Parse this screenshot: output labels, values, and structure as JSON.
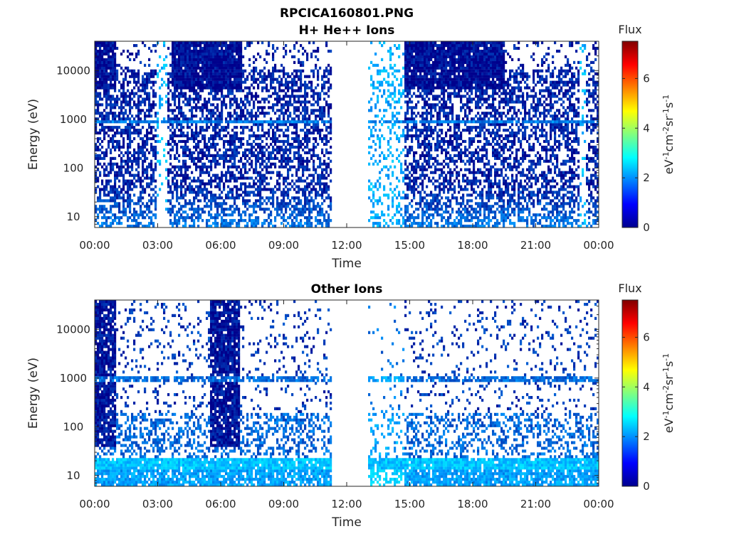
{
  "figure_title": "RPCICA160801.PNG",
  "colormap": [
    "#00008f",
    "#0000ff",
    "#0080ff",
    "#00ffff",
    "#80ff80",
    "#ffff00",
    "#ff8000",
    "#ff0000",
    "#800000"
  ],
  "chart_data": [
    {
      "type": "heatmap",
      "title": "H+ He++ Ions",
      "xlabel": "Time",
      "ylabel": "Energy (eV)",
      "yscale": "log",
      "xlim_hours": [
        0,
        24
      ],
      "ylim": [
        6,
        40000
      ],
      "x_ticks": [
        "00:00",
        "03:00",
        "06:00",
        "09:00",
        "12:00",
        "15:00",
        "18:00",
        "21:00",
        "00:00"
      ],
      "y_ticks": [
        {
          "value": 10,
          "label": "10"
        },
        {
          "value": 100,
          "label": "100"
        },
        {
          "value": 1000,
          "label": "1000"
        },
        {
          "value": 10000,
          "label": "10000"
        }
      ],
      "colorbar": {
        "title": "Flux",
        "label": "eV-1cm-2sr-1s-1",
        "range": [
          0,
          7.5
        ],
        "ticks": [
          "0",
          "2",
          "4",
          "6"
        ]
      },
      "data_gaps_hours": [
        [
          11.3,
          13.0
        ]
      ],
      "features": [
        {
          "description": "low-flux band",
          "start_hour": 3.0,
          "end_hour": 3.5
        },
        {
          "description": "low-flux band",
          "start_hour": 23.1,
          "end_hour": 23.4
        },
        {
          "description": "reduced flux",
          "start_hour": 13.0,
          "end_hour": 14.7
        },
        {
          "description": "high-energy enhancement",
          "start_hour": 0.0,
          "end_hour": 1.0
        },
        {
          "description": "high-energy enhancement",
          "start_hour": 3.7,
          "end_hour": 7.0
        },
        {
          "description": "high-energy enhancement",
          "start_hour": 14.7,
          "end_hour": 19.5
        },
        {
          "description": "energy band",
          "energy_ev": 900
        }
      ]
    },
    {
      "type": "heatmap",
      "title": "Other Ions",
      "xlabel": "Time",
      "ylabel": "Energy (eV)",
      "yscale": "log",
      "xlim_hours": [
        0,
        24
      ],
      "ylim": [
        6,
        40000
      ],
      "x_ticks": [
        "00:00",
        "03:00",
        "06:00",
        "09:00",
        "12:00",
        "15:00",
        "18:00",
        "21:00",
        "00:00"
      ],
      "y_ticks": [
        {
          "value": 10,
          "label": "10"
        },
        {
          "value": 100,
          "label": "100"
        },
        {
          "value": 1000,
          "label": "1000"
        },
        {
          "value": 10000,
          "label": "10000"
        }
      ],
      "colorbar": {
        "title": "Flux",
        "label": "eV-1cm-2sr-1s-1",
        "range": [
          0,
          7.5
        ],
        "ticks": [
          "0",
          "2",
          "4",
          "6"
        ]
      },
      "data_gaps_hours": [
        [
          11.3,
          13.0
        ]
      ],
      "features": [
        {
          "description": "high-energy enhancement",
          "start_hour": 0.0,
          "end_hour": 1.0
        },
        {
          "description": "high-energy enhancement",
          "start_hour": 5.5,
          "end_hour": 6.9
        },
        {
          "description": "energy band",
          "energy_ev": 950
        },
        {
          "description": "low-energy band",
          "energy_ev": 12
        }
      ]
    }
  ]
}
